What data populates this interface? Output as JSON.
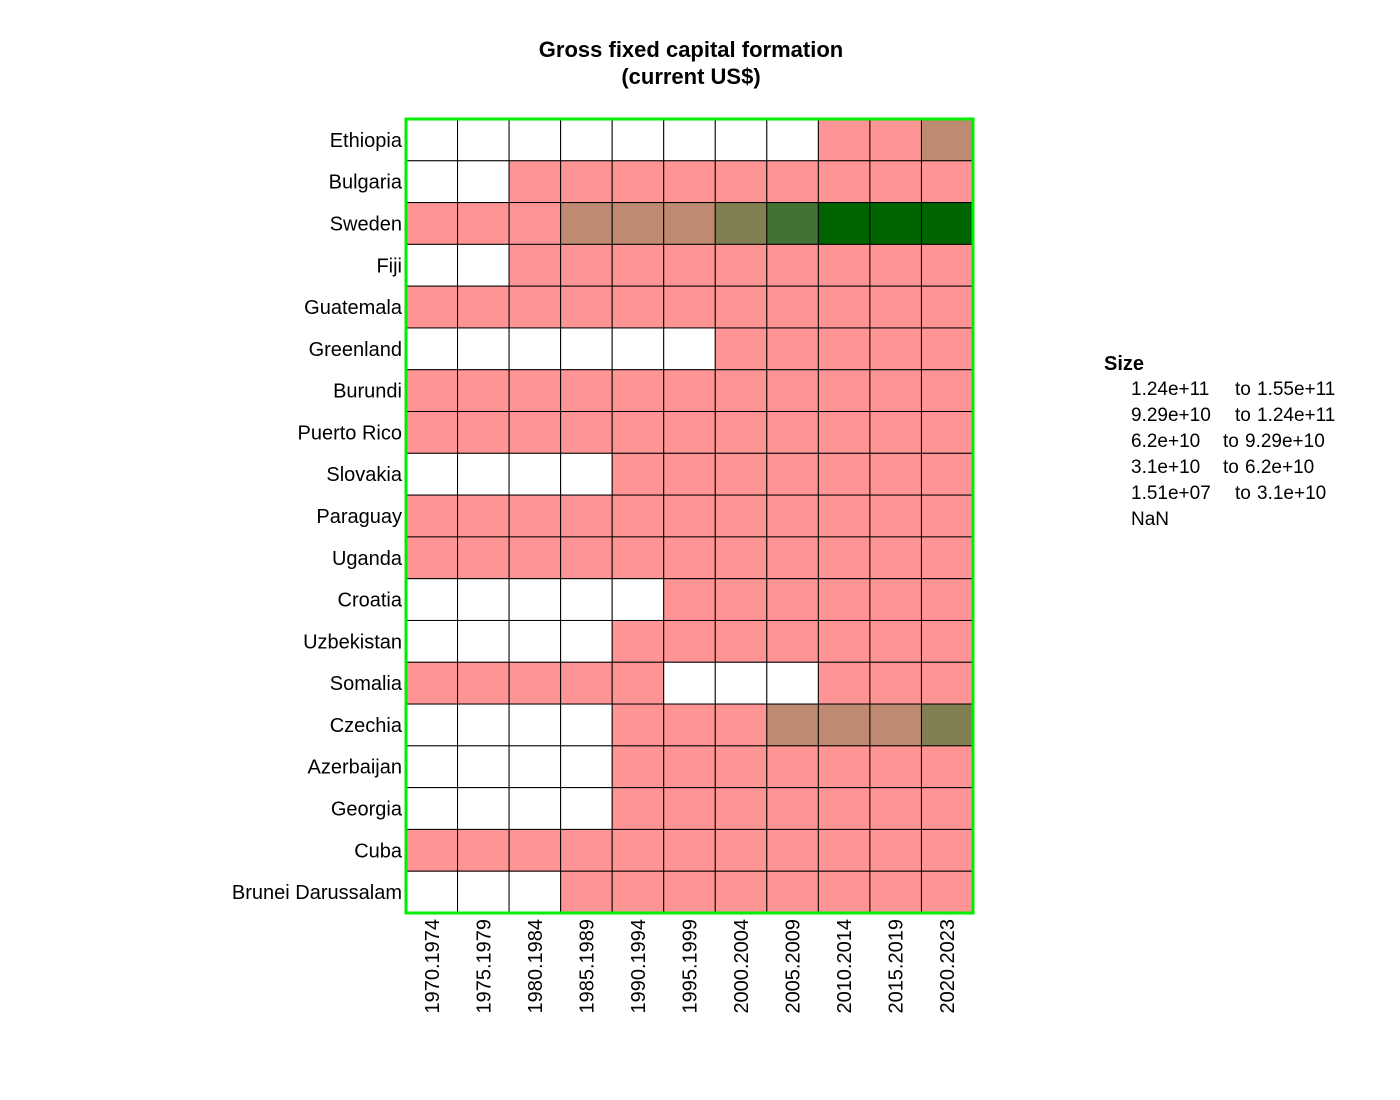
{
  "chart_data": {
    "type": "heatmap",
    "title": "Gross fixed capital formation",
    "subtitle": "(current US$)",
    "x_categories": [
      "1970.1974",
      "1975.1979",
      "1980.1984",
      "1985.1989",
      "1990.1994",
      "1995.1999",
      "2000.2004",
      "2005.2009",
      "2010.2014",
      "2015.2019",
      "2020.2023"
    ],
    "y_categories": [
      "Ethiopia",
      "Bulgaria",
      "Sweden",
      "Fiji",
      "Guatemala",
      "Greenland",
      "Burundi",
      "Puerto Rico",
      "Slovakia",
      "Paraguay",
      "Uganda",
      "Croatia",
      "Uzbekistan",
      "Somalia",
      "Czechia",
      "Azerbaijan",
      "Georgia",
      "Cuba",
      "Brunei Darussalam"
    ],
    "values": [
      [
        null,
        null,
        null,
        null,
        null,
        null,
        null,
        null,
        5,
        5,
        4
      ],
      [
        null,
        null,
        5,
        5,
        5,
        5,
        5,
        5,
        5,
        5,
        5
      ],
      [
        5,
        5,
        5,
        4,
        4,
        4,
        3,
        2,
        1,
        1,
        1
      ],
      [
        null,
        null,
        5,
        5,
        5,
        5,
        5,
        5,
        5,
        5,
        5
      ],
      [
        5,
        5,
        5,
        5,
        5,
        5,
        5,
        5,
        5,
        5,
        5
      ],
      [
        null,
        null,
        null,
        null,
        null,
        null,
        5,
        5,
        5,
        5,
        5
      ],
      [
        5,
        5,
        5,
        5,
        5,
        5,
        5,
        5,
        5,
        5,
        5
      ],
      [
        5,
        5,
        5,
        5,
        5,
        5,
        5,
        5,
        5,
        5,
        5
      ],
      [
        null,
        null,
        null,
        null,
        5,
        5,
        5,
        5,
        5,
        5,
        5
      ],
      [
        5,
        5,
        5,
        5,
        5,
        5,
        5,
        5,
        5,
        5,
        5
      ],
      [
        5,
        5,
        5,
        5,
        5,
        5,
        5,
        5,
        5,
        5,
        5
      ],
      [
        null,
        null,
        null,
        null,
        null,
        5,
        5,
        5,
        5,
        5,
        5
      ],
      [
        null,
        null,
        null,
        null,
        5,
        5,
        5,
        5,
        5,
        5,
        5
      ],
      [
        5,
        5,
        5,
        5,
        5,
        null,
        null,
        null,
        5,
        5,
        5
      ],
      [
        null,
        null,
        null,
        null,
        5,
        5,
        5,
        4,
        4,
        4,
        3
      ],
      [
        null,
        null,
        null,
        null,
        5,
        5,
        5,
        5,
        5,
        5,
        5
      ],
      [
        null,
        null,
        null,
        null,
        5,
        5,
        5,
        5,
        5,
        5,
        5
      ],
      [
        5,
        5,
        5,
        5,
        5,
        5,
        5,
        5,
        5,
        5,
        5
      ],
      [
        null,
        null,
        null,
        5,
        5,
        5,
        5,
        5,
        5,
        5,
        5
      ]
    ],
    "value_encoding": "bin index into legend.bins (1 = highest bin, 5 = lowest bin); null = NaN",
    "legend": {
      "title": "Size",
      "placement": "right",
      "bins": [
        {
          "from": "1.24e+11",
          "sep": "to",
          "to": "1.55e+11",
          "color": "#006400"
        },
        {
          "from": "9.29e+10",
          "sep": "to",
          "to": "1.24e+11",
          "color": "#437235"
        },
        {
          "from": "6.2e+10",
          "sep": "to",
          "to": "9.29e+10",
          "color": "#828053"
        },
        {
          "from": "3.1e+10",
          "sep": "to",
          "to": "6.2e+10",
          "color": "#bf8a72"
        },
        {
          "from": "1.51e+07",
          "sep": "to",
          "to": "3.1e+10",
          "color": "#ff9494"
        }
      ],
      "nan_label": "NaN",
      "nan_color": "#ffffff"
    },
    "border_color": "#00ee00",
    "grid": true
  }
}
